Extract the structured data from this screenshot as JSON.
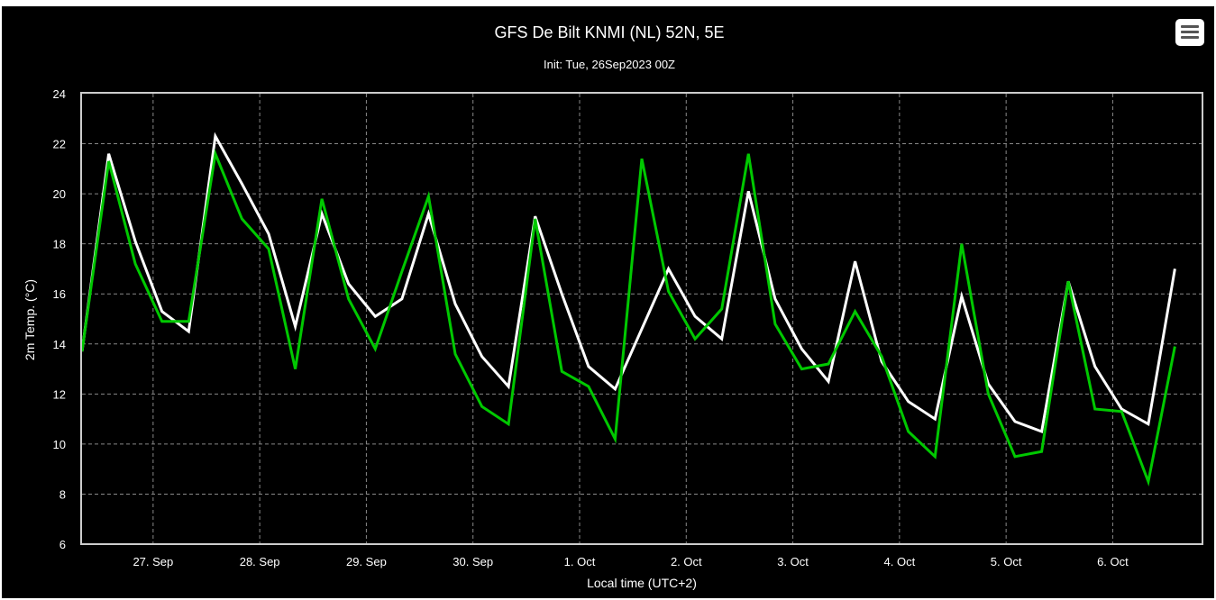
{
  "colors": {
    "background": "#000000",
    "series_white": "#ffffff",
    "series_green": "#00c800",
    "grid": "#888888"
  },
  "icons": {
    "menu": "hamburger-menu-icon"
  },
  "chart_data": {
    "type": "line",
    "title": "GFS De Bilt KNMI (NL) 52N, 5E",
    "subtitle": "Init: Tue, 26Sep2023 00Z",
    "xlabel": "Local time (UTC+2)",
    "ylabel": "2m Temp. (°C)",
    "ylim": [
      6,
      24
    ],
    "yticks": [
      6,
      8,
      10,
      12,
      14,
      16,
      18,
      20,
      22,
      24
    ],
    "xlim": [
      "2023-09-26 08:00",
      "2023-10-06 20:00"
    ],
    "xticks": [
      {
        "label": "27. Sep",
        "date": "2023-09-27 00:00"
      },
      {
        "label": "28. Sep",
        "date": "2023-09-28 00:00"
      },
      {
        "label": "29. Sep",
        "date": "2023-09-29 00:00"
      },
      {
        "label": "30. Sep",
        "date": "2023-09-30 00:00"
      },
      {
        "label": "1. Oct",
        "date": "2023-10-01 00:00"
      },
      {
        "label": "2. Oct",
        "date": "2023-10-02 00:00"
      },
      {
        "label": "3. Oct",
        "date": "2023-10-03 00:00"
      },
      {
        "label": "4. Oct",
        "date": "2023-10-04 00:00"
      },
      {
        "label": "5. Oct",
        "date": "2023-10-05 00:00"
      },
      {
        "label": "6. Oct",
        "date": "2023-10-06 00:00"
      }
    ],
    "grid": true,
    "legend": "none",
    "x": [
      "2023-09-26 08:00",
      "2023-09-26 14:00",
      "2023-09-26 20:00",
      "2023-09-27 02:00",
      "2023-09-27 08:00",
      "2023-09-27 14:00",
      "2023-09-27 20:00",
      "2023-09-28 02:00",
      "2023-09-28 08:00",
      "2023-09-28 14:00",
      "2023-09-28 20:00",
      "2023-09-29 02:00",
      "2023-09-29 08:00",
      "2023-09-29 14:00",
      "2023-09-29 20:00",
      "2023-09-30 02:00",
      "2023-09-30 08:00",
      "2023-09-30 14:00",
      "2023-09-30 20:00",
      "2023-10-01 02:00",
      "2023-10-01 08:00",
      "2023-10-01 14:00",
      "2023-10-01 20:00",
      "2023-10-02 02:00",
      "2023-10-02 08:00",
      "2023-10-02 14:00",
      "2023-10-02 20:00",
      "2023-10-03 02:00",
      "2023-10-03 08:00",
      "2023-10-03 14:00",
      "2023-10-03 20:00",
      "2023-10-04 02:00",
      "2023-10-04 08:00",
      "2023-10-04 14:00",
      "2023-10-04 20:00",
      "2023-10-05 02:00",
      "2023-10-05 08:00",
      "2023-10-05 14:00",
      "2023-10-05 20:00",
      "2023-10-06 02:00",
      "2023-10-06 08:00",
      "2023-10-06 14:00"
    ],
    "series": [
      {
        "color": "#ffffff",
        "values": [
          13.7,
          21.6,
          18.1,
          15.3,
          14.5,
          22.3,
          20.4,
          18.4,
          14.7,
          19.2,
          16.4,
          15.1,
          15.8,
          19.2,
          15.6,
          13.5,
          12.3,
          19.1,
          16.0,
          13.1,
          12.2,
          14.6,
          17.0,
          15.1,
          14.2,
          20.1,
          15.8,
          13.8,
          12.5,
          17.3,
          13.3,
          11.7,
          11.0,
          15.9,
          12.4,
          10.9,
          10.5,
          16.5,
          13.1,
          11.4,
          10.8,
          17.0
        ]
      },
      {
        "color": "#00c800",
        "values": [
          13.7,
          21.3,
          17.2,
          14.9,
          14.9,
          21.6,
          19.0,
          17.8,
          13.0,
          19.8,
          15.8,
          13.8,
          16.9,
          19.9,
          13.6,
          11.5,
          10.8,
          19.0,
          12.9,
          12.3,
          10.2,
          21.4,
          16.1,
          14.2,
          15.4,
          21.6,
          14.8,
          13.0,
          13.2,
          15.3,
          13.5,
          10.5,
          9.5,
          18.0,
          12.0,
          9.5,
          9.7,
          16.5,
          11.4,
          11.3,
          8.5,
          13.9
        ]
      }
    ]
  }
}
